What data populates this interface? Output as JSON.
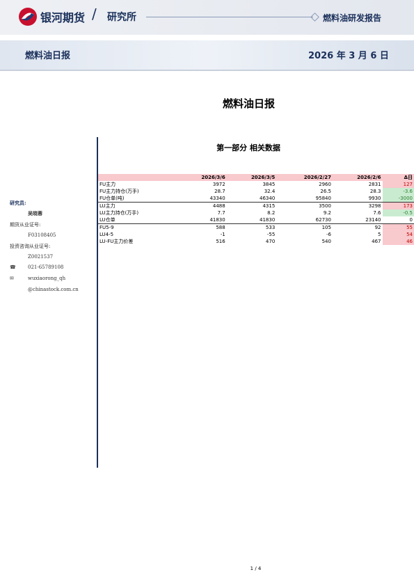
{
  "header": {
    "brand": "银河期货",
    "dept": "研究所",
    "report": "燃料油研发报告"
  },
  "banner": {
    "title": "燃料油日报",
    "date": "2026 年 3 月 6 日"
  },
  "title": "燃料油日报",
  "sidebar": {
    "role": "研究员:",
    "name": "吴晓蓉",
    "license_label": "期货从业证号:",
    "license": "F03108405",
    "consult_label": "投资咨询从业证号:",
    "consult": "Z0021537",
    "phone": "021-65789108",
    "email_user": "wuxiaorong_qh",
    "email_domain": "@chinastock.com.cn"
  },
  "section": "第一部分 相关数据",
  "table": {
    "header": [
      "2026/3/6",
      "2026/3/5",
      "2026/2/27",
      "2026/2/6",
      "Δ日"
    ],
    "rows": [
      [
        "FU主力",
        3972,
        3845,
        2960,
        2831,
        127
      ],
      [
        "FU主力持仓(万手)",
        28.7,
        32.4,
        26.5,
        28.3,
        -3.6
      ],
      [
        "FU仓单(吨)",
        43340,
        46340,
        95840,
        9930,
        -3000
      ],
      [
        "LU主力",
        4488,
        4315,
        3500,
        3298,
        173
      ],
      [
        "LU主力持仓(万手)",
        7.7,
        8.2,
        9.2,
        7.6,
        -0.5
      ],
      [
        "LU仓单",
        41830,
        41830,
        62730,
        23140,
        0
      ],
      [
        "FU5-9",
        588,
        533,
        105,
        92,
        55
      ],
      [
        "LU4-5",
        -1,
        -55,
        -6,
        5,
        54
      ],
      [
        "LU-FU主力价差",
        516,
        470,
        540,
        467,
        46
      ]
    ]
  },
  "page": "1 / 4"
}
